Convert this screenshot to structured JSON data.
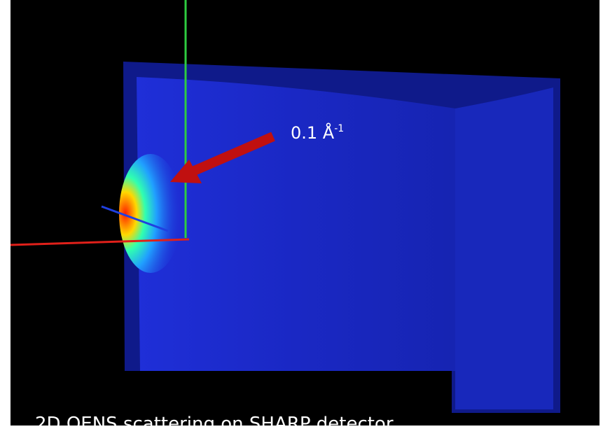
{
  "annotation": {
    "label": "0.1 Å",
    "superscript": "-1"
  },
  "caption": "2D QENS scattering on SHARP detector"
}
